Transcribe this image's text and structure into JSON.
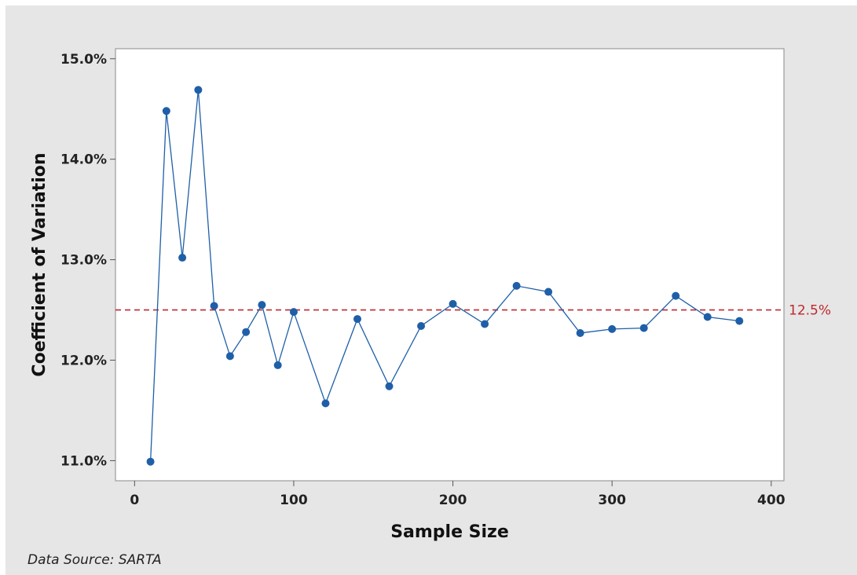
{
  "chart_data": {
    "type": "line",
    "xlabel": "Sample Size",
    "ylabel": "Coefficient of Variation",
    "xlim": [
      -12,
      408
    ],
    "ylim": [
      10.8,
      15.1
    ],
    "x_ticks": [
      0,
      100,
      200,
      300,
      400
    ],
    "y_ticks": [
      11.0,
      12.0,
      13.0,
      14.0,
      15.0
    ],
    "y_tick_format": "percent_1dp",
    "grid": false,
    "series": [
      {
        "x": [
          10,
          20,
          30,
          40,
          50,
          60,
          70,
          80,
          90,
          100,
          120,
          140,
          160,
          180,
          200,
          220,
          240,
          260,
          280,
          300,
          320,
          340,
          360,
          380
        ],
        "values": [
          10.99,
          14.48,
          13.02,
          14.69,
          12.54,
          12.04,
          12.28,
          12.55,
          11.95,
          12.48,
          11.57,
          12.41,
          11.74,
          12.34,
          12.56,
          12.36,
          12.74,
          12.68,
          12.27,
          12.31,
          12.32,
          12.64,
          12.43,
          12.39
        ],
        "color": "#1f5fa8"
      }
    ],
    "reference_line": {
      "y": 12.5,
      "label": "12.5%",
      "color": "#c0282d",
      "style": "dashed"
    }
  },
  "footnote": "Data Source: SARTA"
}
